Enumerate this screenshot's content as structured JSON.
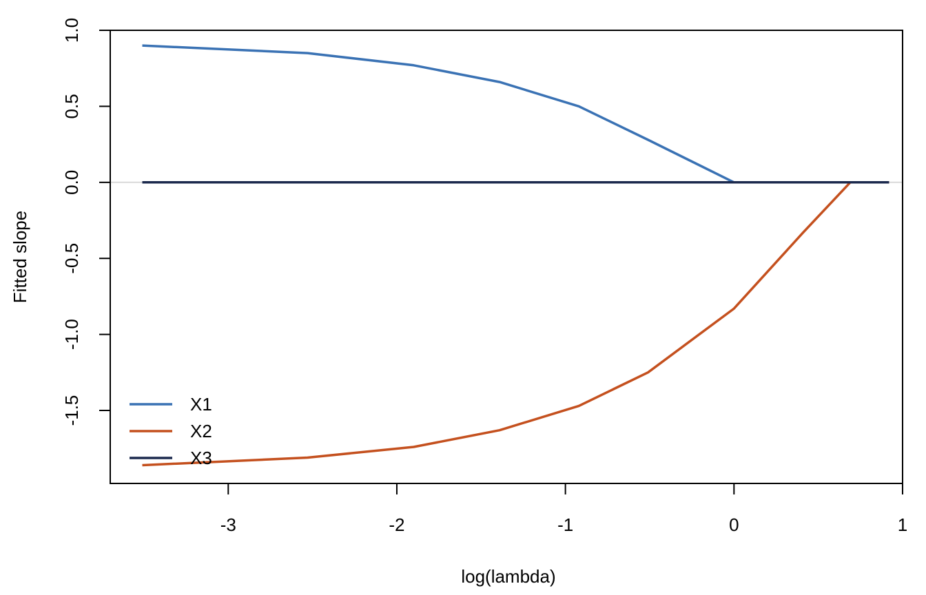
{
  "chart_data": {
    "type": "line",
    "title": "",
    "xlabel": "log(lambda)",
    "ylabel": "Fitted slope",
    "xlim": [
      -3.7,
      1.0
    ],
    "ylim": [
      -1.98,
      1.0
    ],
    "x_ticks": [
      -3,
      -2,
      -1,
      0,
      1
    ],
    "x_tick_labels": [
      "-3",
      "-2",
      "-1",
      "0",
      "1"
    ],
    "y_ticks": [
      1.0,
      0.5,
      0.0,
      -0.5,
      -1.0,
      -1.5
    ],
    "y_tick_labels": [
      "1.0",
      "0.5",
      "0.0",
      "-0.5",
      "-1.0",
      "-1.5"
    ],
    "grid": false,
    "reference_line": {
      "y": 0,
      "color": "#d9d9d9"
    },
    "legend": {
      "position": "bottom-left",
      "boxed": false
    },
    "series": [
      {
        "name": "X1",
        "color": "#3a72b4",
        "x": [
          -3.51,
          -2.53,
          -1.9,
          -1.39,
          -0.92,
          -0.51,
          0.0,
          0.41,
          0.69,
          0.92
        ],
        "y": [
          0.9,
          0.85,
          0.77,
          0.66,
          0.5,
          0.28,
          0.0,
          0.0,
          0.0,
          0.0
        ]
      },
      {
        "name": "X2",
        "color": "#c4501e",
        "x": [
          -3.51,
          -2.53,
          -1.9,
          -1.39,
          -0.92,
          -0.51,
          0.0,
          0.41,
          0.69,
          0.92
        ],
        "y": [
          -1.86,
          -1.81,
          -1.74,
          -1.63,
          -1.47,
          -1.25,
          -0.83,
          -0.33,
          0.0,
          0.0
        ]
      },
      {
        "name": "X3",
        "color": "#1c2a4e",
        "x": [
          -3.51,
          -2.53,
          -1.9,
          -1.39,
          -0.92,
          -0.51,
          0.0,
          0.41,
          0.69,
          0.92
        ],
        "y": [
          0.0,
          0.0,
          0.0,
          0.0,
          0.0,
          0.0,
          0.0,
          0.0,
          0.0,
          0.0
        ]
      }
    ]
  }
}
